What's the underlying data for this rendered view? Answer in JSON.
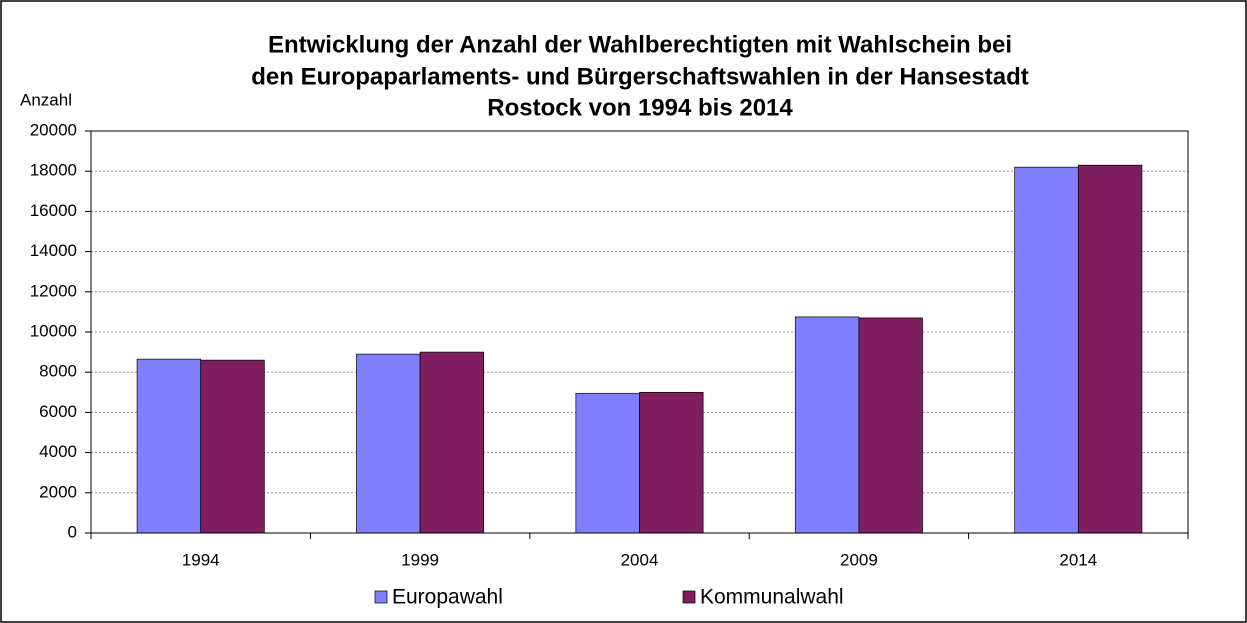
{
  "chart_data": {
    "type": "bar",
    "title": [
      "Entwicklung der Anzahl der Wahlberechtigten mit Wahlschein bei",
      "den Europaparlaments- und Bürgerschaftswahlen in der Hansestadt",
      "Rostock von 1994 bis 2014"
    ],
    "y_label": "Anzahl",
    "categories": [
      "1994",
      "1999",
      "2004",
      "2009",
      "2014"
    ],
    "series": [
      {
        "name": "Europawahl",
        "color": "#8080ff",
        "values": [
          8650,
          8900,
          6950,
          10750,
          18200
        ]
      },
      {
        "name": "Kommunalwahl",
        "color": "#7f1f5f",
        "values": [
          8600,
          9000,
          7000,
          10700,
          18300
        ]
      }
    ],
    "ylim": [
      0,
      20000
    ],
    "yticks": [
      0,
      2000,
      4000,
      6000,
      8000,
      10000,
      12000,
      14000,
      16000,
      18000,
      20000
    ],
    "grid": true,
    "legend": "bottom"
  }
}
